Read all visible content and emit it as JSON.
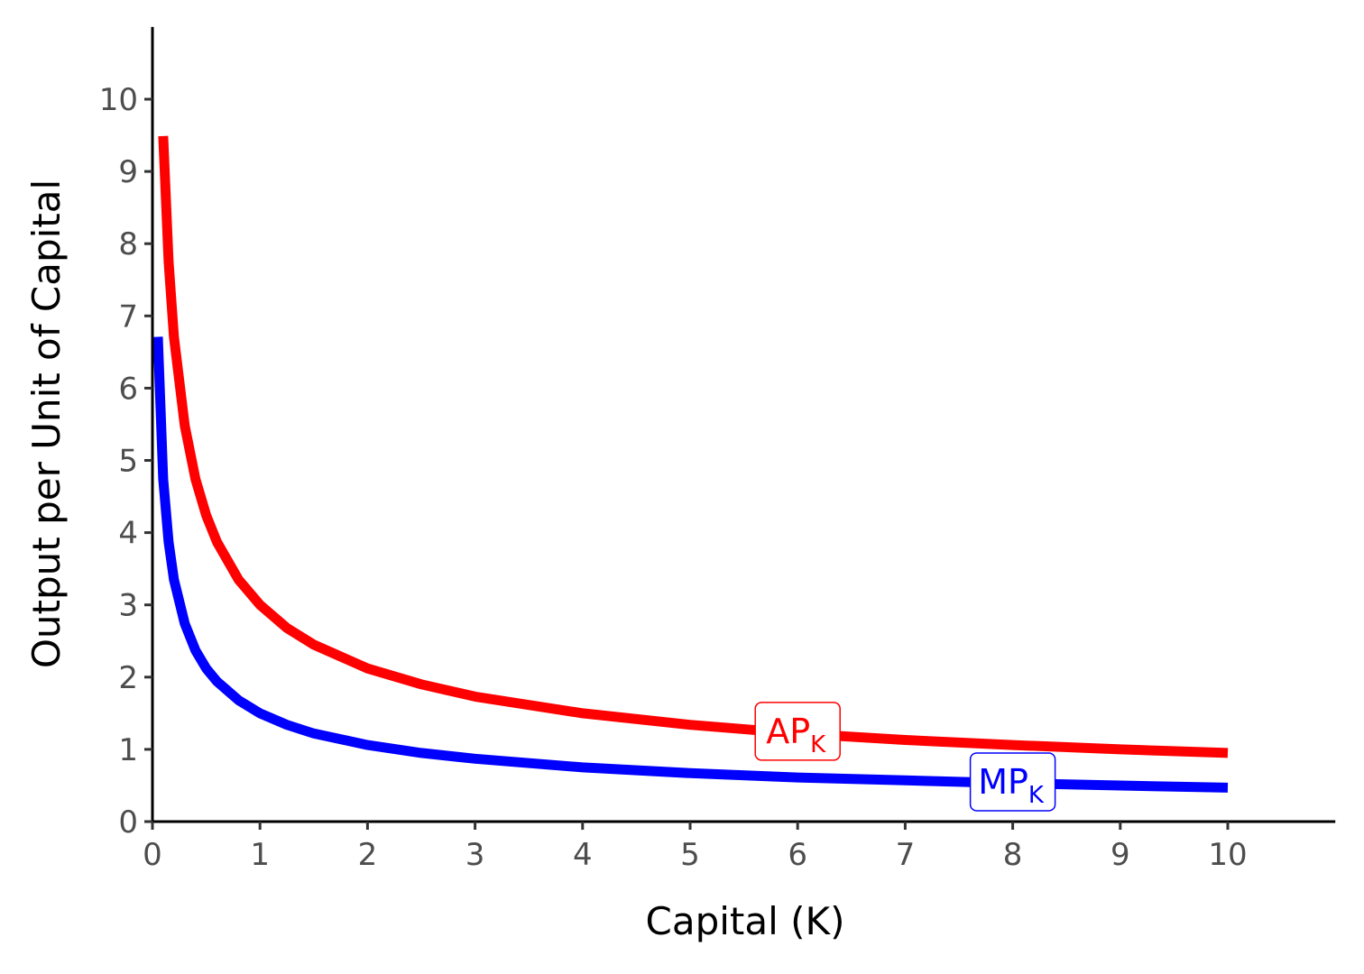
{
  "chart_data": {
    "type": "line",
    "xlabel": "Capital (K)",
    "ylabel": "Output per Unit of Capital",
    "xlim": [
      0,
      11
    ],
    "ylim": [
      0,
      11
    ],
    "x_ticks": [
      "0",
      "1",
      "2",
      "3",
      "4",
      "5",
      "6",
      "7",
      "8",
      "9",
      "10"
    ],
    "y_ticks": [
      "0",
      "1",
      "2",
      "3",
      "4",
      "5",
      "6",
      "7",
      "8",
      "9",
      "10"
    ],
    "grid": false,
    "legend": "none",
    "series": [
      {
        "name": "AP",
        "subscript": "K",
        "color": "#ff0000",
        "label_x": 6,
        "label_y": 1.25,
        "x": [
          0.1,
          0.15,
          0.2,
          0.3,
          0.4,
          0.5,
          0.6,
          0.8,
          1,
          1.25,
          1.5,
          2,
          2.5,
          3,
          4,
          5,
          6,
          7,
          8,
          9,
          10
        ],
        "y": [
          9.49,
          7.75,
          6.71,
          5.48,
          4.74,
          4.24,
          3.87,
          3.35,
          3.0,
          2.68,
          2.45,
          2.12,
          1.9,
          1.73,
          1.5,
          1.34,
          1.22,
          1.13,
          1.06,
          1.0,
          0.95
        ]
      },
      {
        "name": "MP",
        "subscript": "K",
        "color": "#0000ff",
        "label_x": 8,
        "label_y": 0.55,
        "x": [
          0.05,
          0.1,
          0.15,
          0.2,
          0.3,
          0.4,
          0.5,
          0.6,
          0.8,
          1,
          1.25,
          1.5,
          2,
          2.5,
          3,
          4,
          5,
          6,
          7,
          8,
          9,
          10
        ],
        "y": [
          6.71,
          4.74,
          3.87,
          3.35,
          2.74,
          2.37,
          2.12,
          1.94,
          1.68,
          1.5,
          1.34,
          1.22,
          1.06,
          0.95,
          0.87,
          0.75,
          0.67,
          0.61,
          0.57,
          0.53,
          0.5,
          0.47
        ]
      }
    ]
  }
}
